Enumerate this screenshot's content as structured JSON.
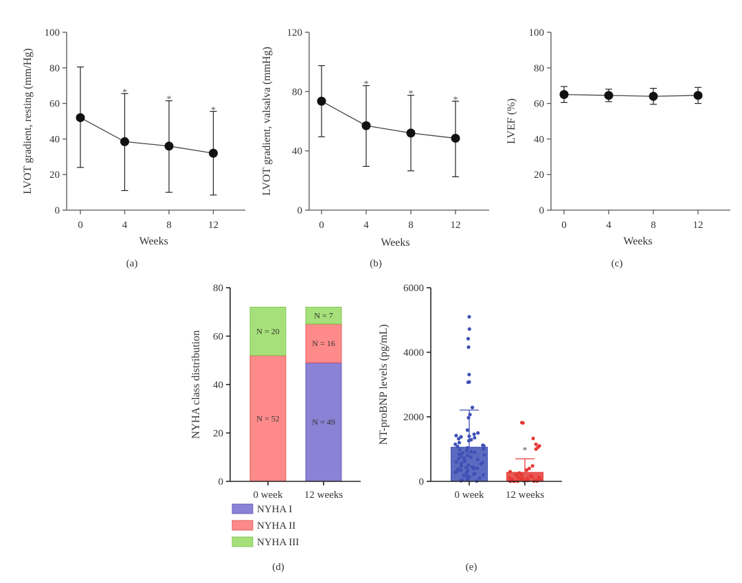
{
  "chart_data": [
    {
      "id": "a",
      "type": "line",
      "panel_label": "(a)",
      "title": "",
      "xlabel": "Weeks",
      "ylabel": "LVOT gradient, resting (mm/Hg)",
      "x": [
        0,
        4,
        8,
        12
      ],
      "xticks": [
        "0",
        "4",
        "8",
        "12"
      ],
      "xlim": [
        -1.5,
        15
      ],
      "ylim": [
        0,
        100
      ],
      "yticks": [
        0,
        20,
        40,
        60,
        80,
        100
      ],
      "series": [
        {
          "name": "mean",
          "values": [
            52,
            38.5,
            36,
            32
          ],
          "err_upper": [
            80.5,
            65.5,
            61.5,
            55.5
          ],
          "err_lower": [
            24,
            11,
            10,
            8.5
          ]
        }
      ],
      "significance": [
        "",
        "*",
        "*",
        "*"
      ]
    },
    {
      "id": "b",
      "type": "line",
      "panel_label": "(b)",
      "title": "",
      "xlabel": "Weeks",
      "ylabel": "LVOT gradient, valsalva (mmHg)",
      "x": [
        0,
        4,
        8,
        12
      ],
      "xticks": [
        "0",
        "4",
        "8",
        "12"
      ],
      "xlim": [
        -1.5,
        15
      ],
      "ylim": [
        0,
        120
      ],
      "yticks": [
        0,
        40,
        80,
        120
      ],
      "series": [
        {
          "name": "mean",
          "values": [
            73.5,
            57,
            52,
            48.5
          ],
          "err_upper": [
            97.5,
            84,
            77.5,
            73.5
          ],
          "err_lower": [
            49.5,
            29.5,
            26.5,
            22.5
          ]
        }
      ],
      "significance": [
        "",
        "*",
        "*",
        "*"
      ]
    },
    {
      "id": "c",
      "type": "line",
      "panel_label": "(c)",
      "title": "",
      "xlabel": "Weeks",
      "ylabel": "LVEF (%)",
      "x": [
        0,
        4,
        8,
        12
      ],
      "xticks": [
        "0",
        "4",
        "8",
        "12"
      ],
      "xlim": [
        -1.5,
        15
      ],
      "ylim": [
        0,
        100
      ],
      "yticks": [
        0,
        20,
        40,
        60,
        80,
        100
      ],
      "series": [
        {
          "name": "mean",
          "values": [
            65,
            64.5,
            64,
            64.5
          ],
          "err_upper": [
            69.5,
            68,
            68.5,
            69
          ],
          "err_lower": [
            60.5,
            61,
            59.5,
            60
          ]
        }
      ],
      "significance": [
        "",
        "",
        "",
        ""
      ]
    },
    {
      "id": "d",
      "type": "bar",
      "stacked": true,
      "panel_label": "(d)",
      "title": "",
      "xlabel": "",
      "ylabel": "NYHA class distribution",
      "categories": [
        "0 week",
        "12 weeks"
      ],
      "ylim": [
        0,
        80
      ],
      "yticks": [
        0,
        20,
        40,
        60,
        80
      ],
      "series": [
        {
          "name": "NYHA I",
          "values": [
            0,
            49
          ],
          "labels": [
            "",
            "N = 49"
          ],
          "color": "#8a82d4",
          "edge": "#5a4fb0"
        },
        {
          "name": "NYHA II",
          "values": [
            52,
            16
          ],
          "labels": [
            "N = 52",
            "N = 16"
          ],
          "color": "#ff8a8a",
          "edge": "#d94848"
        },
        {
          "name": "NYHA III",
          "values": [
            20,
            7
          ],
          "labels": [
            "N = 20",
            "N = 7"
          ],
          "color": "#a6e07a",
          "edge": "#6fbf3f"
        }
      ],
      "legend": "bottom-left"
    },
    {
      "id": "e",
      "type": "bar",
      "panel_label": "(e)",
      "title": "",
      "xlabel": "",
      "ylabel": "NT-proBNP levels (pg/mL)",
      "categories": [
        "0 week",
        "12 weeks"
      ],
      "ylim": [
        0,
        6000
      ],
      "yticks": [
        0,
        2000,
        4000,
        6000
      ],
      "values": [
        1060,
        280
      ],
      "err_upper": [
        2210,
        700
      ],
      "colors": [
        "#3f51b5",
        "#e53935"
      ],
      "significance": [
        "",
        "*"
      ],
      "points": [
        [
          5100,
          4720,
          4420,
          4160,
          3310,
          3080,
          3070,
          2290,
          2070,
          1970,
          1590,
          1500,
          1460,
          1420,
          1400,
          1380,
          1350,
          1320,
          1290,
          1260,
          1200,
          1150,
          1120,
          1100,
          1080,
          1040,
          1000,
          980,
          950,
          920,
          900,
          880,
          850,
          820,
          800,
          780,
          740,
          720,
          700,
          680,
          650,
          620,
          600,
          580,
          560,
          540,
          500,
          470,
          450,
          430,
          410,
          400,
          380,
          350,
          330,
          300,
          280,
          260,
          240,
          220,
          200,
          180,
          160,
          140,
          120,
          100,
          80,
          60,
          40,
          20,
          10
        ],
        [
          1820,
          1810,
          1330,
          1150,
          1100,
          1060,
          1000,
          480,
          400,
          350,
          300,
          260,
          230,
          210,
          190,
          170,
          150,
          130,
          120,
          100,
          90,
          80,
          70,
          60,
          50,
          40,
          30,
          25,
          20,
          15,
          10,
          10,
          5,
          5,
          5
        ]
      ]
    }
  ]
}
